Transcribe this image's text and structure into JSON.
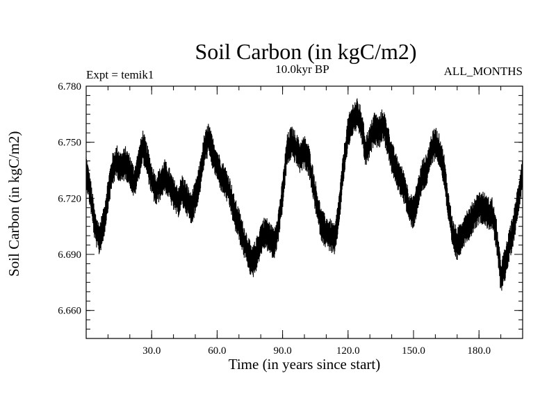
{
  "chart_data": {
    "type": "line",
    "title": "Soil Carbon (in kgC/m2)",
    "subtitle": "10.0kyr BP",
    "annotation_left": "Expt = temik1",
    "annotation_right": "ALL_MONTHS",
    "xlabel": "Time (in years since start)",
    "ylabel": "Soil Carbon (in kgC/m2)",
    "xlim": [
      0,
      200
    ],
    "ylim": [
      6.645,
      6.78
    ],
    "x_ticks": [
      30,
      60,
      90,
      120,
      150,
      180
    ],
    "x_tick_labels": [
      "30.0",
      "60.0",
      "90.0",
      "120.0",
      "150.0",
      "180.0"
    ],
    "y_ticks": [
      6.78,
      6.75,
      6.72,
      6.69,
      6.66
    ],
    "y_tick_labels": [
      "6.780",
      "6.750",
      "6.720",
      "6.690",
      "6.660"
    ],
    "series": [
      {
        "name": "Soil Carbon",
        "x": [
          0,
          2,
          4,
          6,
          8,
          10,
          12,
          14,
          16,
          18,
          20,
          22,
          24,
          26,
          28,
          30,
          32,
          34,
          36,
          38,
          40,
          42,
          44,
          46,
          48,
          50,
          52,
          54,
          56,
          58,
          60,
          62,
          64,
          66,
          68,
          70,
          72,
          74,
          76,
          78,
          80,
          82,
          84,
          86,
          88,
          90,
          92,
          94,
          96,
          98,
          100,
          102,
          104,
          106,
          108,
          110,
          112,
          114,
          116,
          118,
          120,
          122,
          124,
          126,
          128,
          130,
          132,
          134,
          136,
          138,
          140,
          142,
          144,
          146,
          148,
          150,
          152,
          154,
          156,
          158,
          160,
          162,
          164,
          166,
          168,
          170,
          172,
          174,
          176,
          178,
          180,
          182,
          184,
          186,
          188,
          190,
          192,
          194,
          196,
          198,
          200
        ],
        "y": [
          6.735,
          6.722,
          6.705,
          6.698,
          6.706,
          6.722,
          6.735,
          6.74,
          6.736,
          6.739,
          6.735,
          6.728,
          6.738,
          6.748,
          6.74,
          6.73,
          6.724,
          6.728,
          6.732,
          6.728,
          6.722,
          6.718,
          6.724,
          6.72,
          6.714,
          6.72,
          6.73,
          6.745,
          6.752,
          6.744,
          6.738,
          6.732,
          6.728,
          6.722,
          6.712,
          6.706,
          6.698,
          6.692,
          6.685,
          6.69,
          6.698,
          6.702,
          6.699,
          6.695,
          6.705,
          6.722,
          6.745,
          6.75,
          6.747,
          6.742,
          6.745,
          6.74,
          6.728,
          6.715,
          6.705,
          6.702,
          6.7,
          6.697,
          6.715,
          6.738,
          6.755,
          6.762,
          6.765,
          6.76,
          6.745,
          6.75,
          6.758,
          6.755,
          6.76,
          6.752,
          6.742,
          6.735,
          6.73,
          6.725,
          6.715,
          6.712,
          6.722,
          6.732,
          6.735,
          6.745,
          6.75,
          6.745,
          6.735,
          6.715,
          6.7,
          6.695,
          6.7,
          6.705,
          6.707,
          6.712,
          6.715,
          6.715,
          6.712,
          6.712,
          6.7,
          6.678,
          6.685,
          6.695,
          6.705,
          6.72,
          6.735
        ],
        "color": "#000000"
      }
    ]
  }
}
